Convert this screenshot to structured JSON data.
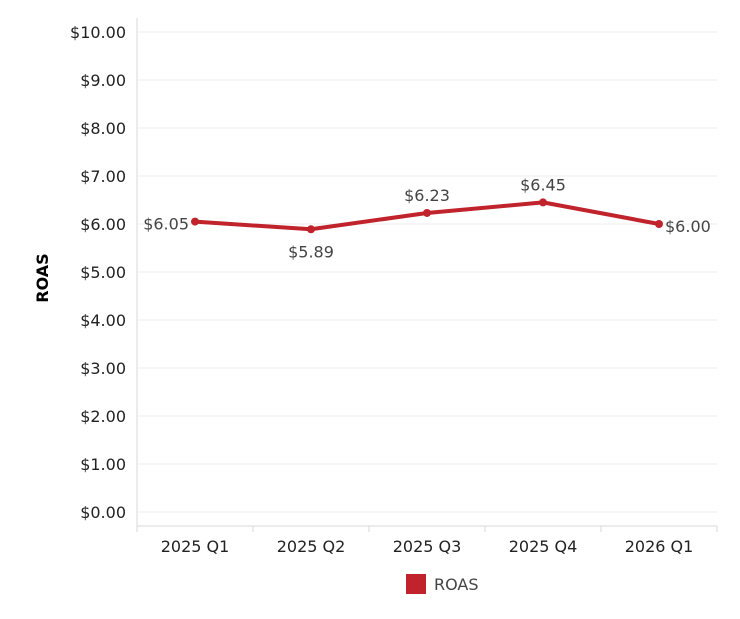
{
  "chart_data": {
    "type": "line",
    "categories": [
      "2025 Q1",
      "2025 Q2",
      "2025 Q3",
      "2025 Q4",
      "2026 Q1"
    ],
    "series": [
      {
        "name": "ROAS",
        "values": [
          6.05,
          5.89,
          6.23,
          6.45,
          6.0
        ]
      }
    ],
    "data_labels": [
      "$6.05",
      "$5.89",
      "$6.23",
      "$6.45",
      "$6.00"
    ],
    "ylabel": "ROAS",
    "xlabel": "",
    "ylim": [
      0,
      10
    ],
    "y_ticks": [
      {
        "value": 0,
        "label": "$0.00"
      },
      {
        "value": 1,
        "label": "$1.00"
      },
      {
        "value": 2,
        "label": "$2.00"
      },
      {
        "value": 3,
        "label": "$3.00"
      },
      {
        "value": 4,
        "label": "$4.00"
      },
      {
        "value": 5,
        "label": "$5.00"
      },
      {
        "value": 6,
        "label": "$6.00"
      },
      {
        "value": 7,
        "label": "$7.00"
      },
      {
        "value": 8,
        "label": "$8.00"
      },
      {
        "value": 9,
        "label": "$9.00"
      },
      {
        "value": 10,
        "label": "$10.00"
      }
    ],
    "grid": true,
    "legend": {
      "position": "bottom",
      "label": "ROAS"
    },
    "colors": {
      "series": "#c0232b",
      "grid": "#ececec",
      "axis": "#d9d9d9"
    }
  }
}
